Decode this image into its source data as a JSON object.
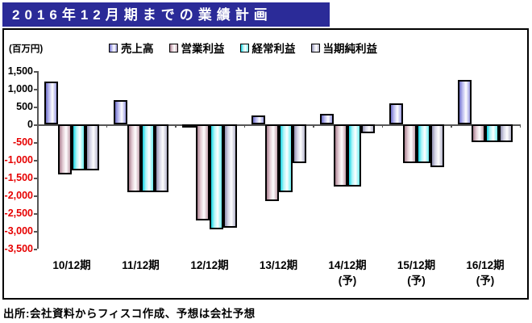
{
  "title": "2016年12月期までの業績計画",
  "units_label": "(百万円)",
  "footer": "出所:会社資料からフィスコ作成、予想は会社予想",
  "colors": {
    "title_bg": "#2b2b98",
    "title_text": "#ffffff",
    "negative_axis_label": "#e60000",
    "positive_axis_label": "#000000",
    "bar_border": "#000000",
    "series_colors": [
      "#8c8cd8",
      "#b08c9a",
      "#40dce8",
      "#a2a2c0"
    ]
  },
  "chart_data": {
    "type": "bar",
    "title": "2016年12月期までの業績計画",
    "ylabel": "(百万円)",
    "ylim": [
      -3500,
      1500
    ],
    "ytick_step": 500,
    "grid": false,
    "legend_position": "top",
    "categories": [
      {
        "label": "10/12期",
        "note": ""
      },
      {
        "label": "11/12期",
        "note": ""
      },
      {
        "label": "12/12期",
        "note": ""
      },
      {
        "label": "13/12期",
        "note": ""
      },
      {
        "label": "14/12期",
        "note": "(予)"
      },
      {
        "label": "15/12期",
        "note": "(予)"
      },
      {
        "label": "16/12期",
        "note": "(予)"
      }
    ],
    "series": [
      {
        "name": "売上高",
        "values": [
          1200,
          680,
          -50,
          250,
          300,
          600,
          1250
        ]
      },
      {
        "name": "営業利益",
        "values": [
          -1400,
          -1900,
          -2700,
          -2150,
          -1750,
          -1100,
          -500
        ]
      },
      {
        "name": "経常利益",
        "values": [
          -1300,
          -1900,
          -2950,
          -1900,
          -1750,
          -1100,
          -500
        ]
      },
      {
        "name": "当期純利益",
        "values": [
          -1300,
          -1900,
          -2900,
          -1100,
          -250,
          -1200,
          -500
        ]
      }
    ],
    "yticks": [
      {
        "label": "1,500",
        "value": 1500
      },
      {
        "label": "1,000",
        "value": 1000
      },
      {
        "label": "500",
        "value": 500
      },
      {
        "label": "0",
        "value": 0
      },
      {
        "label": "-500",
        "value": -500
      },
      {
        "label": "-1,000",
        "value": -1000
      },
      {
        "label": "-1,500",
        "value": -1500
      },
      {
        "label": "-2,000",
        "value": -2000
      },
      {
        "label": "-2,500",
        "value": -2500
      },
      {
        "label": "-3,000",
        "value": -3000
      },
      {
        "label": "-3,500",
        "value": -3500
      }
    ]
  }
}
